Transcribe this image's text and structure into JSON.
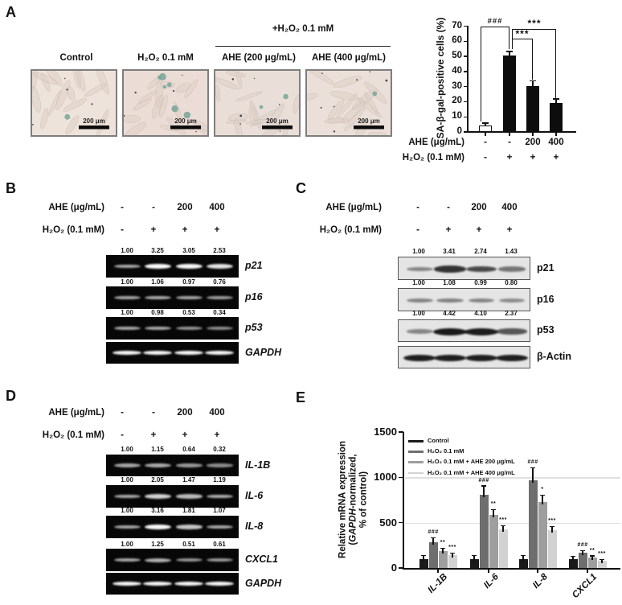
{
  "panels": {
    "A": {
      "label": "A",
      "treated_group_header": "+H₂O₂ 0.1 mM",
      "micrographs": [
        {
          "title": "Control",
          "scale_bar_label": "200 μm",
          "stained_cells": 1
        },
        {
          "title": "H₂O₂ 0.1 mM",
          "scale_bar_label": "200 μm",
          "stained_cells": 6
        },
        {
          "title": "AHE (200 μg/mL)",
          "scale_bar_label": "200 μm",
          "stained_cells": 2
        },
        {
          "title": "AHE (400 μg/mL)",
          "scale_bar_label": "200 μm",
          "stained_cells": 1
        }
      ]
    },
    "B": {
      "label": "B",
      "header_rows": [
        {
          "label": "AHE (μg/mL)",
          "values": [
            "-",
            "-",
            "200",
            "400"
          ]
        },
        {
          "label": "H₂O₂ (0.1 mM)",
          "values": [
            "-",
            "+",
            "+",
            "+"
          ]
        }
      ],
      "gels": [
        {
          "name": "p21",
          "values": [
            "1.00",
            "3.25",
            "3.05",
            "2.53"
          ]
        },
        {
          "name": "p16",
          "values": [
            "1.00",
            "1.06",
            "0.97",
            "0.76"
          ]
        },
        {
          "name": "p53",
          "values": [
            "1.00",
            "0.98",
            "0.53",
            "0.34"
          ]
        },
        {
          "name": "GAPDH",
          "values": null
        }
      ]
    },
    "C": {
      "label": "C",
      "header_rows": [
        {
          "label": "AHE (μg/mL)",
          "values": [
            "-",
            "-",
            "200",
            "400"
          ]
        },
        {
          "label": "H₂O₂ (0.1 mM)",
          "values": [
            "-",
            "+",
            "+",
            "+"
          ]
        }
      ],
      "gels": [
        {
          "name": "p21",
          "values": [
            "1.00",
            "3.41",
            "2.74",
            "1.43"
          ]
        },
        {
          "name": "p16",
          "values": [
            "1.00",
            "1.08",
            "0.99",
            "0.80"
          ]
        },
        {
          "name": "p53",
          "values": [
            "1.00",
            "4.42",
            "4.10",
            "2.37"
          ]
        },
        {
          "name": "β-Actin",
          "values": null
        }
      ]
    },
    "D": {
      "label": "D",
      "header_rows": [
        {
          "label": "AHE (μg/mL)",
          "values": [
            "-",
            "-",
            "200",
            "400"
          ]
        },
        {
          "label": "H₂O₂ (0.1 mM)",
          "values": [
            "-",
            "+",
            "+",
            "+"
          ]
        }
      ],
      "gels": [
        {
          "name": "IL-1B",
          "values": [
            "1.00",
            "1.15",
            "0.64",
            "0.32"
          ]
        },
        {
          "name": "IL-6",
          "values": [
            "1.00",
            "2.05",
            "1.47",
            "1.19"
          ]
        },
        {
          "name": "IL-8",
          "values": [
            "1.00",
            "3.16",
            "1.81",
            "1.07"
          ]
        },
        {
          "name": "CXCL1",
          "values": [
            "1.00",
            "1.25",
            "0.51",
            "0.61"
          ]
        },
        {
          "name": "GAPDH",
          "values": null
        }
      ]
    },
    "E": {
      "label": "E"
    }
  },
  "chart_data": [
    {
      "type": "bar",
      "panel": "A",
      "ylabel": "SA-β-gal-positive cells (%)",
      "ylim": [
        0,
        70
      ],
      "yticks": [
        0,
        10,
        20,
        30,
        40,
        50,
        60,
        70
      ],
      "categories": [
        "Control",
        "H₂O₂ 0.1 mM",
        "H₂O₂ 0.1 mM + AHE 200 μg/mL",
        "H₂O₂ 0.1 mM + AHE 400 μg/mL"
      ],
      "values": [
        4.5,
        50.5,
        30.5,
        19
      ],
      "errors": [
        1,
        2.5,
        3,
        2.5
      ],
      "bar_fills": [
        "#ffffff",
        "#0d0d0d",
        "#0d0d0d",
        "#0d0d0d"
      ],
      "x_rows": [
        {
          "label": "AHE (μg/mL)",
          "values": [
            "-",
            "-",
            "200",
            "400"
          ]
        },
        {
          "label": "H₂O₂ (0.1 mM)",
          "values": [
            "-",
            "+",
            "+",
            "+"
          ]
        }
      ],
      "significance": [
        {
          "label": "###",
          "between": [
            0,
            1
          ]
        },
        {
          "label": "***",
          "between": [
            1,
            2
          ]
        },
        {
          "label": "***",
          "between": [
            1,
            3
          ]
        }
      ]
    },
    {
      "type": "grouped-bar",
      "panel": "E",
      "ylabel_lines": [
        "Relative mRNA expression",
        "(GAPDH-normalized,",
        "% of control)"
      ],
      "ylim": [
        0,
        1500
      ],
      "yticks": [
        0,
        500,
        1000,
        1500
      ],
      "grid_y": [
        500,
        1000
      ],
      "categories": [
        "IL-1B",
        "IL-6",
        "IL-8",
        "CXCL1"
      ],
      "series": [
        {
          "name": "Control",
          "color": "#1a1a1a",
          "values": [
            100,
            100,
            100,
            100
          ],
          "errors": [
            30,
            30,
            35,
            25
          ],
          "sig": [
            null,
            null,
            null,
            null
          ]
        },
        {
          "name": "H₂O₂ 0.1 mM",
          "color": "#6e6e6e",
          "values": [
            285,
            810,
            970,
            165
          ],
          "errors": [
            40,
            90,
            130,
            20
          ],
          "sig": [
            "###",
            "###",
            "###",
            "###"
          ]
        },
        {
          "name": "H₂O₂ 0.1 mM + AHE 200 μg/mL",
          "color": "#9e9e9e",
          "values": [
            190,
            590,
            730,
            115
          ],
          "errors": [
            25,
            45,
            70,
            12
          ],
          "sig": [
            "**",
            "**",
            "*",
            "**"
          ]
        },
        {
          "name": "H₂O₂ 0.1 mM + AHE 400 μg/mL",
          "color": "#d2d2d2",
          "values": [
            140,
            430,
            420,
            80
          ],
          "errors": [
            20,
            30,
            30,
            10
          ],
          "sig": [
            "***",
            "***",
            "***",
            "***"
          ]
        }
      ],
      "legend_position": "top-left"
    }
  ]
}
